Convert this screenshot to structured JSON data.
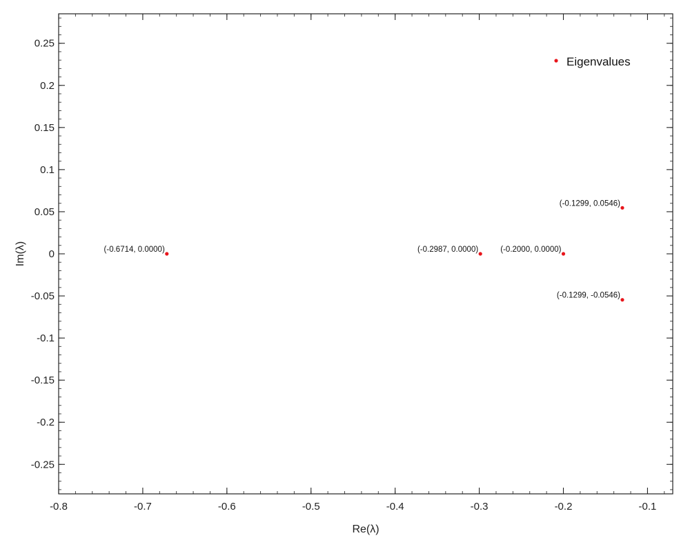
{
  "chart_data": {
    "type": "scatter",
    "title": "",
    "xlabel": "Re(λ)",
    "ylabel": "Im(λ)",
    "xlim": [
      -0.8,
      -0.07
    ],
    "ylim": [
      -0.285,
      0.285
    ],
    "xticks": [
      -0.8,
      -0.7,
      -0.6,
      -0.5,
      -0.4,
      -0.3,
      -0.2,
      -0.1
    ],
    "yticks": [
      -0.25,
      -0.2,
      -0.15,
      -0.1,
      -0.05,
      0,
      0.05,
      0.1,
      0.15,
      0.2,
      0.25
    ],
    "xtick_labels": [
      "-0.8",
      "-0.7",
      "-0.6",
      "-0.5",
      "-0.4",
      "-0.3",
      "-0.2",
      "-0.1"
    ],
    "ytick_labels": [
      "-0.25",
      "-0.2",
      "-0.15",
      "-0.1",
      "-0.05",
      "0",
      "0.05",
      "0.1",
      "0.15",
      "0.2",
      "0.25"
    ],
    "grid": false,
    "legend": {
      "position": "top-right",
      "entries": [
        "Eigenvalues"
      ]
    },
    "marker_color": "#e8151b",
    "series": [
      {
        "name": "Eigenvalues",
        "points": [
          {
            "x": -0.6714,
            "y": 0.0,
            "label": "(-0.6714, 0.0000)"
          },
          {
            "x": -0.2987,
            "y": 0.0,
            "label": "(-0.2987, 0.0000)"
          },
          {
            "x": -0.2,
            "y": 0.0,
            "label": "(-0.2000, 0.0000)"
          },
          {
            "x": -0.1299,
            "y": 0.0546,
            "label": "(-0.1299, 0.0546)"
          },
          {
            "x": -0.1299,
            "y": -0.0546,
            "label": "(-0.1299, -0.0546)"
          }
        ]
      }
    ]
  }
}
